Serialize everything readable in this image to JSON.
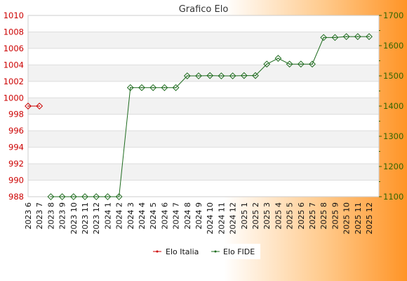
{
  "chart_data": {
    "type": "line",
    "title": "Grafico Elo",
    "categories": [
      "2023 6",
      "2023 7",
      "2023 8",
      "2023 9",
      "2023 10",
      "2023 11",
      "2023 12",
      "2024 1",
      "2024 2",
      "2024 3",
      "2024 4",
      "2024 5",
      "2024 6",
      "2024 7",
      "2024 8",
      "2024 9",
      "2024 10",
      "2024 11",
      "2024 12",
      "2025 1",
      "2025 2",
      "2025 3",
      "2025 4",
      "2025 5",
      "2025 6",
      "2025 7",
      "2025 8",
      "2025 9",
      "2025 10",
      "2025 11",
      "2025 12"
    ],
    "y_left": {
      "range": [
        988,
        1010
      ],
      "ticks": [
        988,
        990,
        992,
        994,
        996,
        998,
        1000,
        1002,
        1004,
        1006,
        1008,
        1010
      ],
      "color": "#cc0000"
    },
    "y_right": {
      "range": [
        1100,
        1700
      ],
      "ticks": [
        1100,
        1200,
        1300,
        1400,
        1500,
        1600,
        1700
      ],
      "color": "#336600"
    },
    "series": [
      {
        "name": "Elo Italia",
        "axis": "left",
        "color": "#cc0000",
        "values": [
          999,
          999,
          null,
          null,
          null,
          null,
          null,
          null,
          null,
          null,
          null,
          null,
          null,
          null,
          null,
          null,
          null,
          null,
          null,
          null,
          null,
          null,
          null,
          null,
          null,
          null,
          null,
          null,
          null,
          null,
          null
        ]
      },
      {
        "name": "Elo FIDE",
        "axis": "right",
        "color": "#1e6b1e",
        "values": [
          null,
          null,
          1100,
          1100,
          1100,
          1100,
          1100,
          1100,
          1100,
          1461,
          1461,
          1461,
          1461,
          1461,
          1500,
          1500,
          1501,
          1500,
          1500,
          1501,
          1501,
          1539,
          1558,
          1539,
          1539,
          1539,
          1627,
          1627,
          1630,
          1630,
          1630
        ]
      }
    ],
    "grid": true,
    "legend_position": "bottom"
  }
}
